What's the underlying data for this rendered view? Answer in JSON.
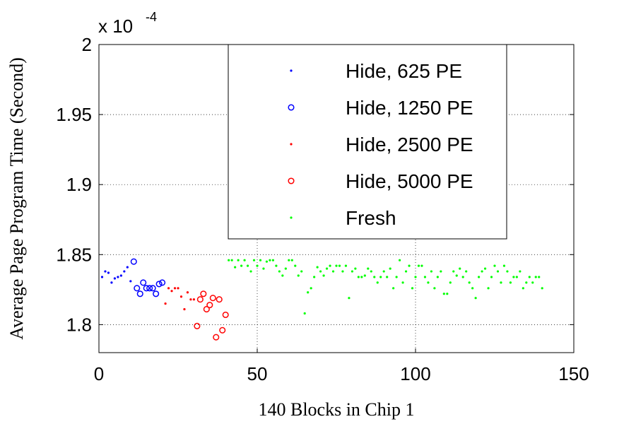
{
  "chart_data": {
    "type": "scatter",
    "xlabel": "140 Blocks in Chip 1",
    "ylabel": "Average Page Program Time (Second)",
    "exponent_base": "x 10",
    "exponent_power": "-4",
    "xlim": [
      0,
      150
    ],
    "ylim": [
      1.78,
      2.0
    ],
    "xticks": [
      0,
      50,
      100,
      150
    ],
    "xtick_labels": [
      "0",
      "50",
      "100",
      "150"
    ],
    "yticks": [
      1.8,
      1.85,
      1.9,
      1.95,
      2.0
    ],
    "ytick_labels": [
      "1.8",
      "1.85",
      "1.9",
      "1.95",
      "2"
    ],
    "grid": true,
    "legend_position": "top-center",
    "series": [
      {
        "name": "Hide, 625 PE",
        "marker": "dot",
        "color": "#0000ff",
        "x": [
          1,
          2,
          3,
          4,
          5,
          6,
          7,
          8,
          9,
          10
        ],
        "y": [
          1.834,
          1.838,
          1.837,
          1.83,
          1.833,
          1.834,
          1.835,
          1.838,
          1.841,
          1.831
        ]
      },
      {
        "name": "Hide, 1250 PE",
        "marker": "circle",
        "color": "#0000ff",
        "x": [
          11,
          12,
          13,
          14,
          15,
          16,
          17,
          18,
          19,
          20
        ],
        "y": [
          1.845,
          1.826,
          1.822,
          1.83,
          1.826,
          1.826,
          1.826,
          1.822,
          1.829,
          1.83
        ]
      },
      {
        "name": "Hide, 2500 PE",
        "marker": "dot",
        "color": "#ff0000",
        "x": [
          21,
          22,
          23,
          24,
          25,
          26,
          27,
          28,
          29,
          30
        ],
        "y": [
          1.815,
          1.826,
          1.824,
          1.826,
          1.826,
          1.82,
          1.811,
          1.823,
          1.818,
          1.818
        ]
      },
      {
        "name": "Hide, 5000 PE",
        "marker": "circle",
        "color": "#ff0000",
        "x": [
          31,
          32,
          33,
          34,
          35,
          36,
          37,
          38,
          39,
          40
        ],
        "y": [
          1.799,
          1.818,
          1.822,
          1.811,
          1.814,
          1.819,
          1.791,
          1.818,
          1.796,
          1.807
        ]
      },
      {
        "name": "Fresh",
        "marker": "dot",
        "color": "#00ff00",
        "x": [
          41,
          42,
          43,
          44,
          45,
          46,
          47,
          48,
          49,
          50,
          51,
          52,
          53,
          54,
          55,
          56,
          57,
          58,
          59,
          60,
          61,
          62,
          63,
          64,
          65,
          66,
          67,
          68,
          69,
          70,
          71,
          72,
          73,
          74,
          75,
          76,
          77,
          78,
          79,
          80,
          81,
          82,
          83,
          84,
          85,
          86,
          87,
          88,
          89,
          90,
          91,
          92,
          93,
          94,
          95,
          96,
          97,
          98,
          99,
          100,
          101,
          102,
          103,
          104,
          105,
          106,
          107,
          108,
          109,
          110,
          111,
          112,
          113,
          114,
          115,
          116,
          117,
          118,
          119,
          120,
          121,
          122,
          123,
          124,
          125,
          126,
          127,
          128,
          129,
          130,
          131,
          132,
          133,
          134,
          135,
          136,
          137,
          138,
          139,
          140
        ],
        "y": [
          1.846,
          1.846,
          1.841,
          1.846,
          1.842,
          1.846,
          1.842,
          1.838,
          1.846,
          1.842,
          1.846,
          1.84,
          1.845,
          1.846,
          1.846,
          1.842,
          1.838,
          1.835,
          1.84,
          1.846,
          1.846,
          1.842,
          1.835,
          1.838,
          1.808,
          1.823,
          1.826,
          1.834,
          1.841,
          1.838,
          1.835,
          1.84,
          1.842,
          1.838,
          1.842,
          1.842,
          1.838,
          1.842,
          1.819,
          1.838,
          1.84,
          1.834,
          1.834,
          1.835,
          1.84,
          1.838,
          1.834,
          1.83,
          1.834,
          1.838,
          1.834,
          1.84,
          1.826,
          1.834,
          1.846,
          1.83,
          1.838,
          1.842,
          1.826,
          1.834,
          1.842,
          1.842,
          1.834,
          1.83,
          1.838,
          1.826,
          1.834,
          1.838,
          1.822,
          1.822,
          1.83,
          1.838,
          1.835,
          1.84,
          1.834,
          1.838,
          1.83,
          1.826,
          1.819,
          1.834,
          1.838,
          1.84,
          1.826,
          1.834,
          1.842,
          1.838,
          1.83,
          1.842,
          1.838,
          1.83,
          1.834,
          1.834,
          1.838,
          1.826,
          1.83,
          1.834,
          1.83,
          1.834,
          1.834,
          1.826
        ]
      }
    ]
  }
}
